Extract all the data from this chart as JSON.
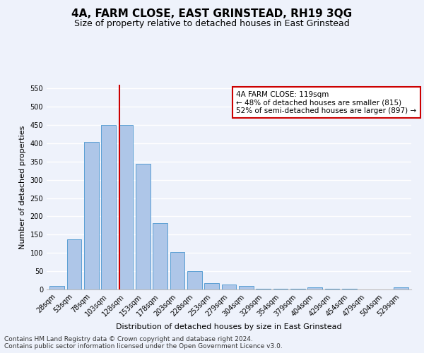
{
  "title": "4A, FARM CLOSE, EAST GRINSTEAD, RH19 3QG",
  "subtitle": "Size of property relative to detached houses in East Grinstead",
  "xlabel": "Distribution of detached houses by size in East Grinstead",
  "ylabel": "Number of detached properties",
  "categories": [
    "28sqm",
    "53sqm",
    "78sqm",
    "103sqm",
    "128sqm",
    "153sqm",
    "178sqm",
    "203sqm",
    "228sqm",
    "253sqm",
    "279sqm",
    "304sqm",
    "329sqm",
    "354sqm",
    "379sqm",
    "404sqm",
    "429sqm",
    "454sqm",
    "479sqm",
    "504sqm",
    "529sqm"
  ],
  "values": [
    10,
    137,
    403,
    449,
    449,
    344,
    181,
    103,
    50,
    18,
    13,
    10,
    2,
    1,
    1,
    5,
    1,
    1,
    0,
    0,
    5
  ],
  "bar_color": "#aec6e8",
  "bar_edge_color": "#5a9fd4",
  "annotation_text_line1": "4A FARM CLOSE: 119sqm",
  "annotation_text_line2": "← 48% of detached houses are smaller (815)",
  "annotation_text_line3": "52% of semi-detached houses are larger (897) →",
  "annotation_box_color": "#cc0000",
  "vline_color": "#cc0000",
  "footer_line1": "Contains HM Land Registry data © Crown copyright and database right 2024.",
  "footer_line2": "Contains public sector information licensed under the Open Government Licence v3.0.",
  "bg_color": "#eef2fb",
  "grid_color": "#ffffff",
  "title_fontsize": 11,
  "subtitle_fontsize": 9,
  "ylabel_fontsize": 8,
  "xlabel_fontsize": 8,
  "footer_fontsize": 6.5,
  "tick_fontsize": 7,
  "ylim": [
    0,
    560
  ],
  "yticks": [
    0,
    50,
    100,
    150,
    200,
    250,
    300,
    350,
    400,
    450,
    500,
    550
  ]
}
